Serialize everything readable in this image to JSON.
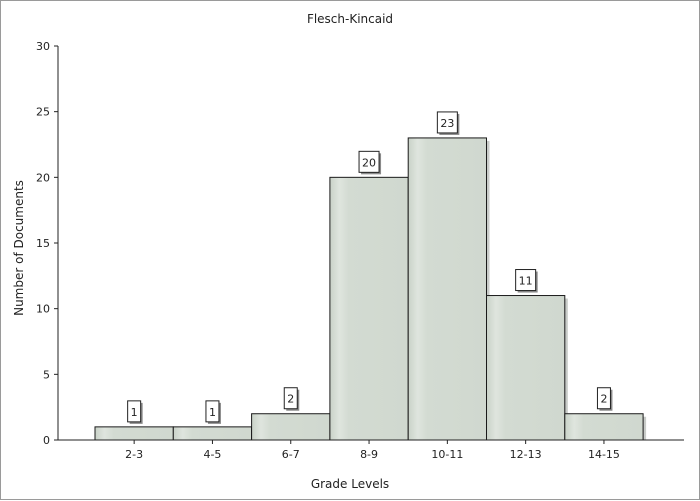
{
  "chart_data": {
    "type": "bar",
    "title": "Flesch-Kincaid",
    "xlabel": "Grade Levels",
    "ylabel": "Number of Documents",
    "categories": [
      "2-3",
      "4-5",
      "6-7",
      "8-9",
      "10-11",
      "12-13",
      "14-15"
    ],
    "values": [
      1,
      1,
      2,
      20,
      23,
      11,
      2
    ],
    "ylim": [
      0,
      30
    ],
    "yticks": [
      0,
      5,
      10,
      15,
      20,
      25,
      30
    ],
    "grid": false,
    "legend": "none",
    "bar_color": "#d3dbd2",
    "bar_highlight": "#e6ebe5",
    "bar_border": "#1a1a1a"
  }
}
